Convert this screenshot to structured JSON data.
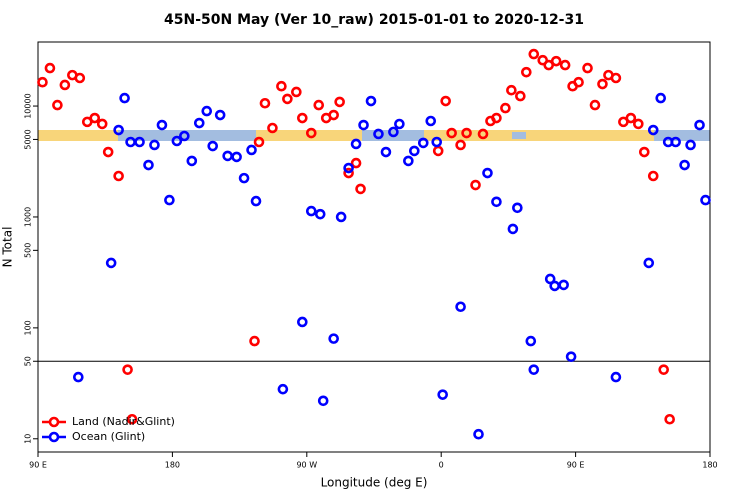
{
  "chart_data": {
    "type": "scatter",
    "title": "45N-50N May (Ver 10_raw)   2015-01-01 to 2020-12-31",
    "x_label": "Longitude (deg E)",
    "y_label": "N Total",
    "xlim": [
      90,
      540
    ],
    "ylim": [
      7.6,
      37800
    ],
    "log_y": true,
    "xticks": [
      {
        "value": 90,
        "label": "90 E"
      },
      180,
      {
        "value": 270,
        "label": "90 W"
      },
      {
        "value": 360,
        "label": "0"
      },
      {
        "value": 450,
        "label": "90 E"
      },
      {
        "value": 540,
        "label": "180"
      }
    ],
    "yticks": [
      10,
      50,
      100,
      500,
      1000,
      5000,
      10000
    ],
    "hline": 50,
    "legend_position": "bottom-left",
    "series": [
      {
        "name": "Land (Nadir&Glint)",
        "color": "#ff0000",
        "x": [
          93,
          98,
          103,
          108,
          113,
          118,
          123,
          128,
          133,
          137,
          144,
          150,
          153,
          235,
          238,
          242,
          247,
          253,
          257,
          263,
          267,
          273,
          278,
          283,
          288,
          292,
          298,
          303,
          306,
          358,
          363,
          367,
          373,
          377,
          383,
          388,
          393,
          397,
          403,
          407,
          413,
          417,
          422,
          428,
          432,
          437,
          443,
          448,
          452,
          458,
          463,
          468,
          472,
          477,
          482,
          487,
          492,
          496,
          502,
          509,
          513
        ],
        "values": [
          16400,
          22000,
          10200,
          15500,
          19000,
          17900,
          7200,
          7800,
          6900,
          3850,
          2340,
          42,
          15,
          76,
          4740,
          10600,
          6340,
          15100,
          11600,
          13400,
          7800,
          5710,
          10200,
          7800,
          8300,
          10900,
          2490,
          3060,
          1790,
          3940,
          11100,
          5710,
          4460,
          5710,
          1940,
          5600,
          7330,
          7800,
          9590,
          13900,
          12300,
          20200,
          29400,
          25900,
          23400,
          25400,
          23400,
          15100,
          16400,
          22000,
          10200,
          15800,
          19000,
          17900,
          7200,
          7800,
          6900,
          3850,
          2340,
          42,
          15
        ]
      },
      {
        "name": "Ocean (Glint)",
        "color": "#0000ff",
        "x": [
          117,
          139,
          144,
          148,
          152,
          158,
          164,
          168,
          173,
          178,
          183,
          188,
          193,
          198,
          203,
          207,
          212,
          217,
          223,
          228,
          233,
          236,
          254,
          267,
          273,
          279,
          281,
          288,
          293,
          298,
          303,
          308,
          313,
          318,
          323,
          328,
          332,
          338,
          342,
          348,
          353,
          357,
          361,
          373,
          385,
          391,
          397,
          408,
          411,
          420,
          422,
          433,
          436,
          442,
          447,
          477,
          499,
          502,
          507,
          512,
          517,
          523,
          527,
          533,
          537
        ],
        "values": [
          36,
          385,
          6080,
          11800,
          4740,
          4740,
          2940,
          4460,
          6740,
          1420,
          4840,
          5370,
          3200,
          7030,
          9010,
          4360,
          8300,
          3550,
          3480,
          2240,
          4020,
          1390,
          28,
          113,
          1130,
          1060,
          22,
          80,
          1000,
          2760,
          4550,
          6740,
          11100,
          5600,
          3850,
          5840,
          6890,
          3200,
          3940,
          4650,
          7330,
          4740,
          25,
          155,
          11,
          2490,
          1370,
          780,
          1210,
          76,
          42,
          276,
          239,
          244,
          55,
          36,
          385,
          6080,
          11800,
          4740,
          4740,
          2940,
          4460,
          6740,
          1420
        ]
      }
    ]
  }
}
